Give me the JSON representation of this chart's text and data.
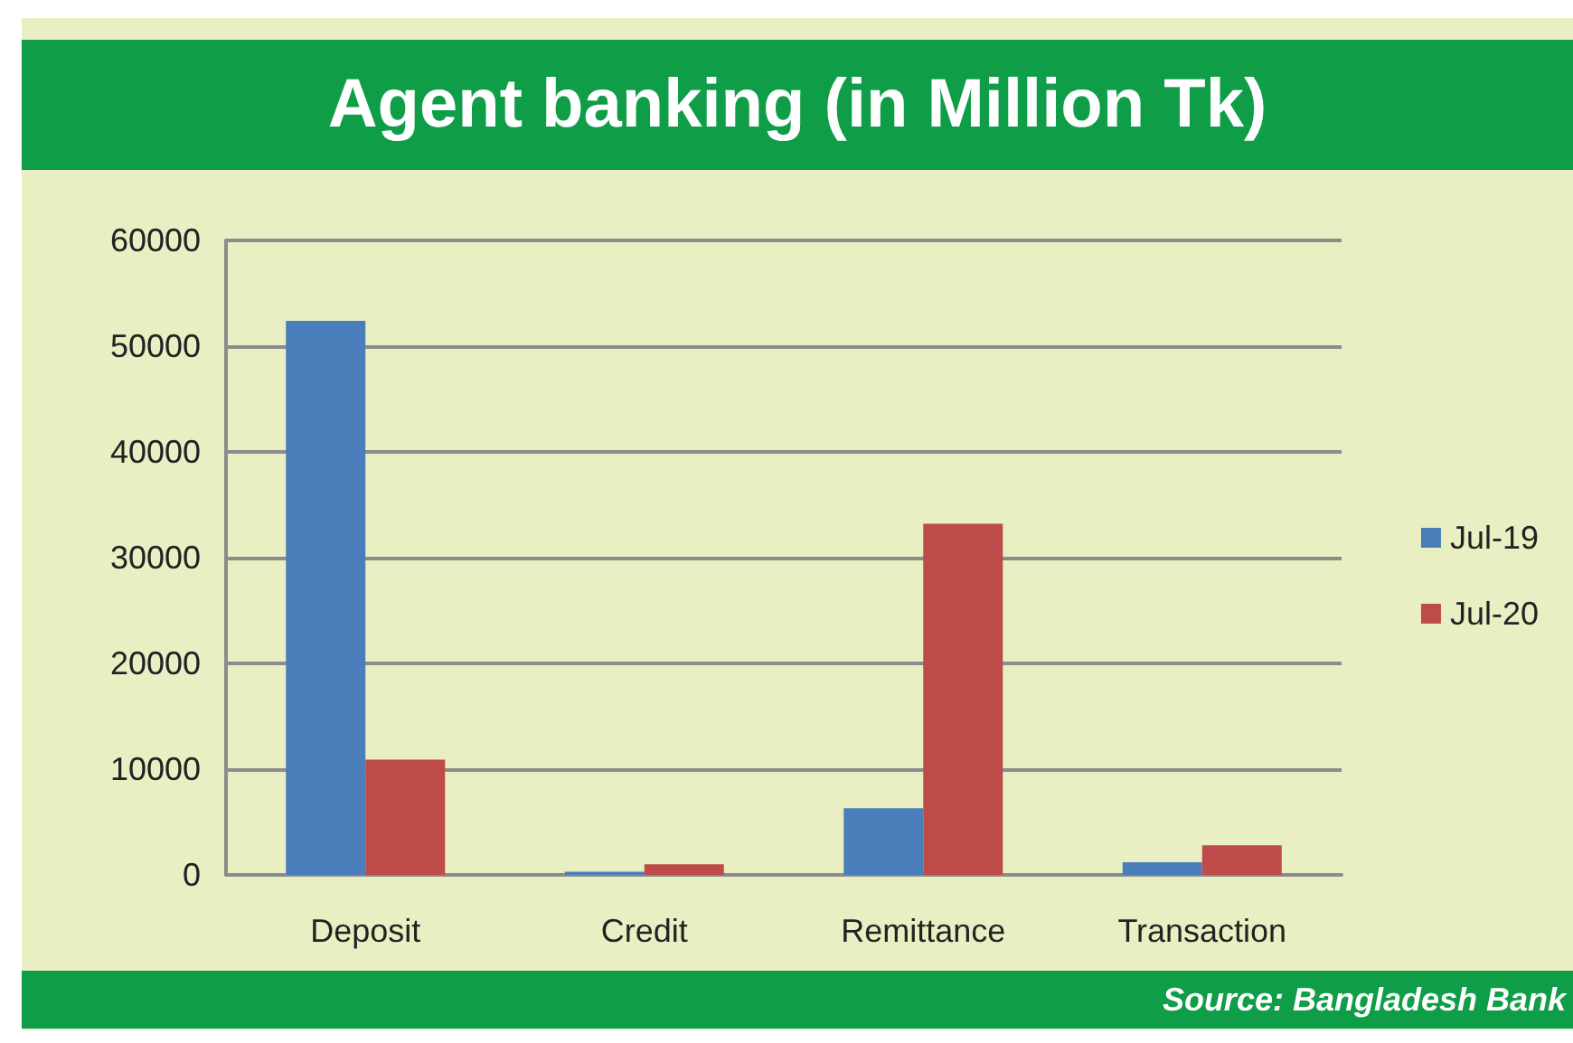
{
  "chart_data": {
    "type": "bar",
    "title": "Agent banking (in Million Tk)",
    "categories": [
      "Deposit",
      "Credit",
      "Remittance",
      "Transaction"
    ],
    "series": [
      {
        "name": "Jul-19",
        "color": "#4a7ebb",
        "values": [
          52400,
          300,
          6300,
          1200
        ]
      },
      {
        "name": "Jul-20",
        "color": "#be4b48",
        "values": [
          10900,
          1000,
          33200,
          2800
        ]
      }
    ],
    "ylim": [
      0,
      60000
    ],
    "yticks": [
      0,
      10000,
      20000,
      30000,
      40000,
      50000,
      60000
    ],
    "grid": "y",
    "legend": "right",
    "annotations": [
      "Source: Bangladesh Bank"
    ]
  }
}
